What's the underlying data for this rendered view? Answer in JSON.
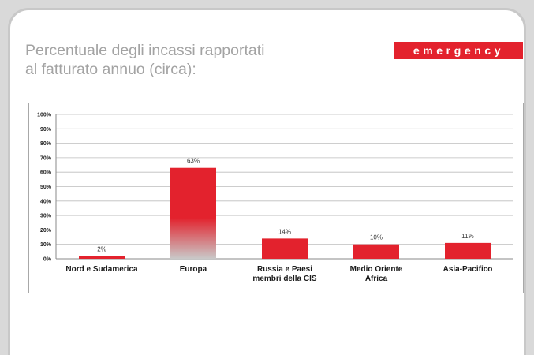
{
  "header": {
    "title_line1": "Percentuale degli incassi rapportati",
    "title_line2": "al fatturato annuo (circa):",
    "brand": "emergency"
  },
  "colors": {
    "bar": "#e3222d",
    "brand": "#e3222d",
    "title": "#a3a3a3"
  },
  "chart_data": {
    "type": "bar",
    "title": "",
    "xlabel": "",
    "ylabel": "",
    "categories": [
      "Nord e Sudamerica",
      "Europa",
      "Russia e Paesi membri della CIS",
      "Medio Oriente Africa",
      "Asia-Pacifico"
    ],
    "category_lines": [
      [
        "Nord e Sudamerica"
      ],
      [
        "Europa"
      ],
      [
        "Russia e Paesi",
        "membri della CIS"
      ],
      [
        "Medio Oriente",
        "Africa"
      ],
      [
        "Asia-Pacifico"
      ]
    ],
    "values": [
      2,
      63,
      14,
      10,
      11
    ],
    "data_labels": [
      "2%",
      "63%",
      "14%",
      "10%",
      "11%"
    ],
    "ylim": [
      0,
      100
    ],
    "yticks": [
      "0%",
      "10%",
      "20%",
      "30%",
      "40%",
      "50%",
      "60%",
      "70%",
      "80%",
      "90%",
      "100%"
    ],
    "grid": true,
    "legend": "none"
  }
}
